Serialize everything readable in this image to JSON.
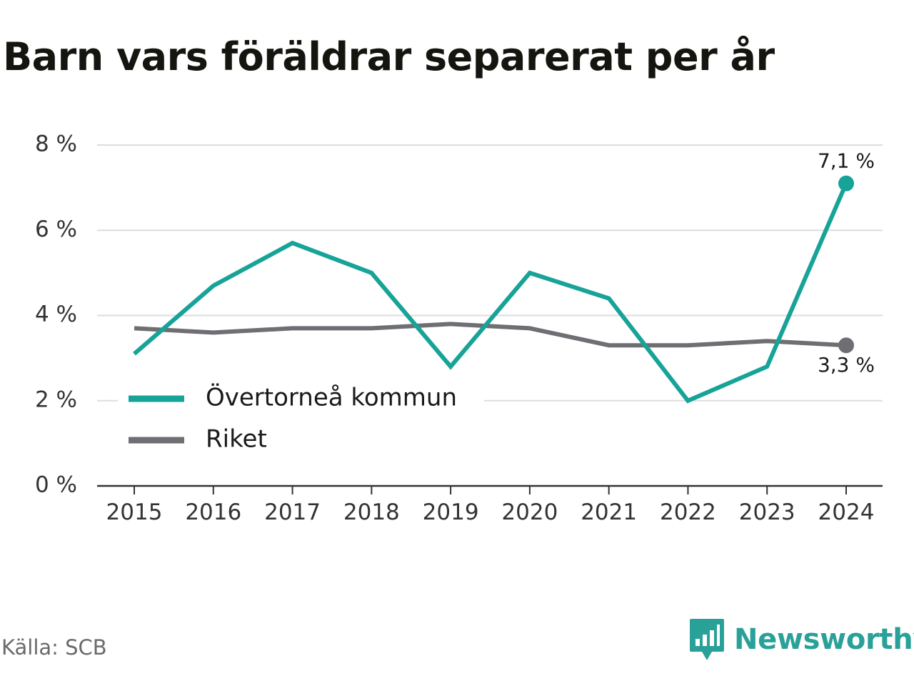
{
  "title": "Barn vars föräldrar separerat per år",
  "source": "Källa: SCB",
  "brand": {
    "name": "Newsworthy",
    "icon": "newsworthy-logo-icon",
    "color": "#2aa198"
  },
  "chart_data": {
    "type": "line",
    "title": "Barn vars föräldrar separerat per år",
    "xlabel": "",
    "ylabel": "",
    "categories": [
      "2015",
      "2016",
      "2017",
      "2018",
      "2019",
      "2020",
      "2021",
      "2022",
      "2023",
      "2024"
    ],
    "ylim": [
      0,
      8
    ],
    "yticks": [
      0,
      2,
      4,
      6,
      8
    ],
    "ytick_labels": [
      "0 %",
      "2 %",
      "4 %",
      "6 %",
      "8 %"
    ],
    "grid": true,
    "legend_position": "left",
    "series": [
      {
        "name": "Övertorneå kommun",
        "color": "#17a398",
        "values": [
          3.1,
          4.7,
          5.7,
          5.0,
          2.8,
          5.0,
          4.4,
          2.0,
          2.8,
          7.1
        ],
        "end_label": "7,1 %"
      },
      {
        "name": "Riket",
        "color": "#6e6e73",
        "values": [
          3.7,
          3.6,
          3.7,
          3.7,
          3.8,
          3.7,
          3.3,
          3.3,
          3.4,
          3.3
        ],
        "end_label": "3,3 %"
      }
    ]
  }
}
